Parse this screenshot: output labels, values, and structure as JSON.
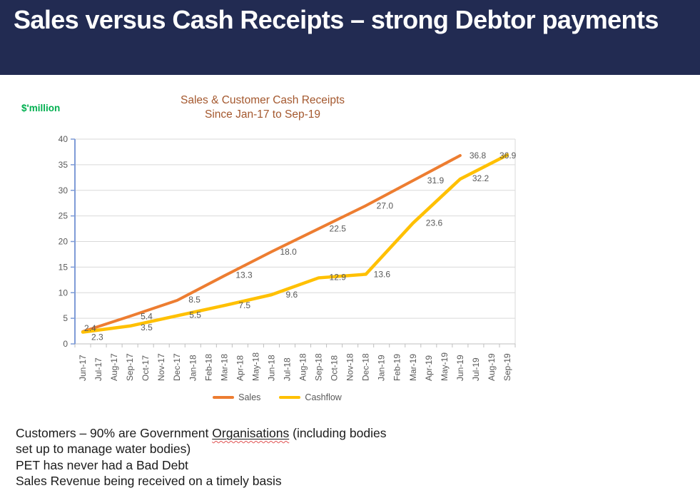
{
  "header": {
    "title": "Sales versus Cash Receipts – strong Debtor payments",
    "bg_color": "#222B52",
    "text_color": "#FFFFFF"
  },
  "chart": {
    "unit_label": "$'million",
    "unit_label_color": "#00B050",
    "title_line1": "Sales & Customer Cash Receipts",
    "title_line2": "Since Jan-17 to Sep-19",
    "title_color": "#A4582E"
  },
  "chart_data": {
    "type": "line",
    "title": "Sales & Customer Cash Receipts Since Jan-17 to Sep-19",
    "ylabel": "$'million",
    "xlabel": "",
    "ylim": [
      0,
      40
    ],
    "ytick_step": 5,
    "grid": true,
    "legend_position": "bottom",
    "categories": [
      "Jun-17",
      "Jul-17",
      "Aug-17",
      "Sep-17",
      "Oct-17",
      "Nov-17",
      "Dec-17",
      "Jan-18",
      "Feb-18",
      "Mar-18",
      "Apr-18",
      "May-18",
      "Jun-18",
      "Jul-18",
      "Aug-18",
      "Sep-18",
      "Oct-18",
      "Nov-18",
      "Dec-18",
      "Jan-19",
      "Feb-19",
      "Mar-19",
      "Apr-19",
      "May-19",
      "Jun-19",
      "Jul-19",
      "Aug-19",
      "Sep-19"
    ],
    "series": [
      {
        "name": "Sales",
        "color": "#ED7D31",
        "points": [
          {
            "month": "Jun-17",
            "value": 2.4
          },
          {
            "month": "Sep-17",
            "value": 5.4
          },
          {
            "month": "Dec-17",
            "value": 8.5
          },
          {
            "month": "Mar-18",
            "value": 13.3
          },
          {
            "month": "Jun-18",
            "value": 18.0
          },
          {
            "month": "Sep-18",
            "value": 22.5
          },
          {
            "month": "Dec-18",
            "value": 27.0
          },
          {
            "month": "Mar-19",
            "value": 31.9
          },
          {
            "month": "Jun-19",
            "value": 36.8
          }
        ]
      },
      {
        "name": "Cashflow",
        "color": "#FFC000",
        "points": [
          {
            "month": "Jun-17",
            "value": 2.3
          },
          {
            "month": "Sep-17",
            "value": 3.5
          },
          {
            "month": "Dec-17",
            "value": 5.5
          },
          {
            "month": "Mar-18",
            "value": 7.5
          },
          {
            "month": "Jun-18",
            "value": 9.6
          },
          {
            "month": "Sep-18",
            "value": 12.9
          },
          {
            "month": "Dec-18",
            "value": 13.6
          },
          {
            "month": "Mar-19",
            "value": 23.6
          },
          {
            "month": "Jun-19",
            "value": 32.2
          },
          {
            "month": "Sep-19",
            "value": 36.9
          }
        ]
      }
    ],
    "colors": {
      "grid": "#D9D9D9",
      "value_axis": "#7E9BD6",
      "category_axis": "#BFBFBF",
      "tick_label": "#595959",
      "data_label": "#595959"
    }
  },
  "notes": {
    "line1_before": "Customers – 90% are Government ",
    "line1_word": "Organisations",
    "line1_after": " (including bodies",
    "line2": "set up to manage water bodies)",
    "line3": "PET has never had a Bad Debt",
    "line4": "Sales Revenue being received on a timely basis"
  }
}
